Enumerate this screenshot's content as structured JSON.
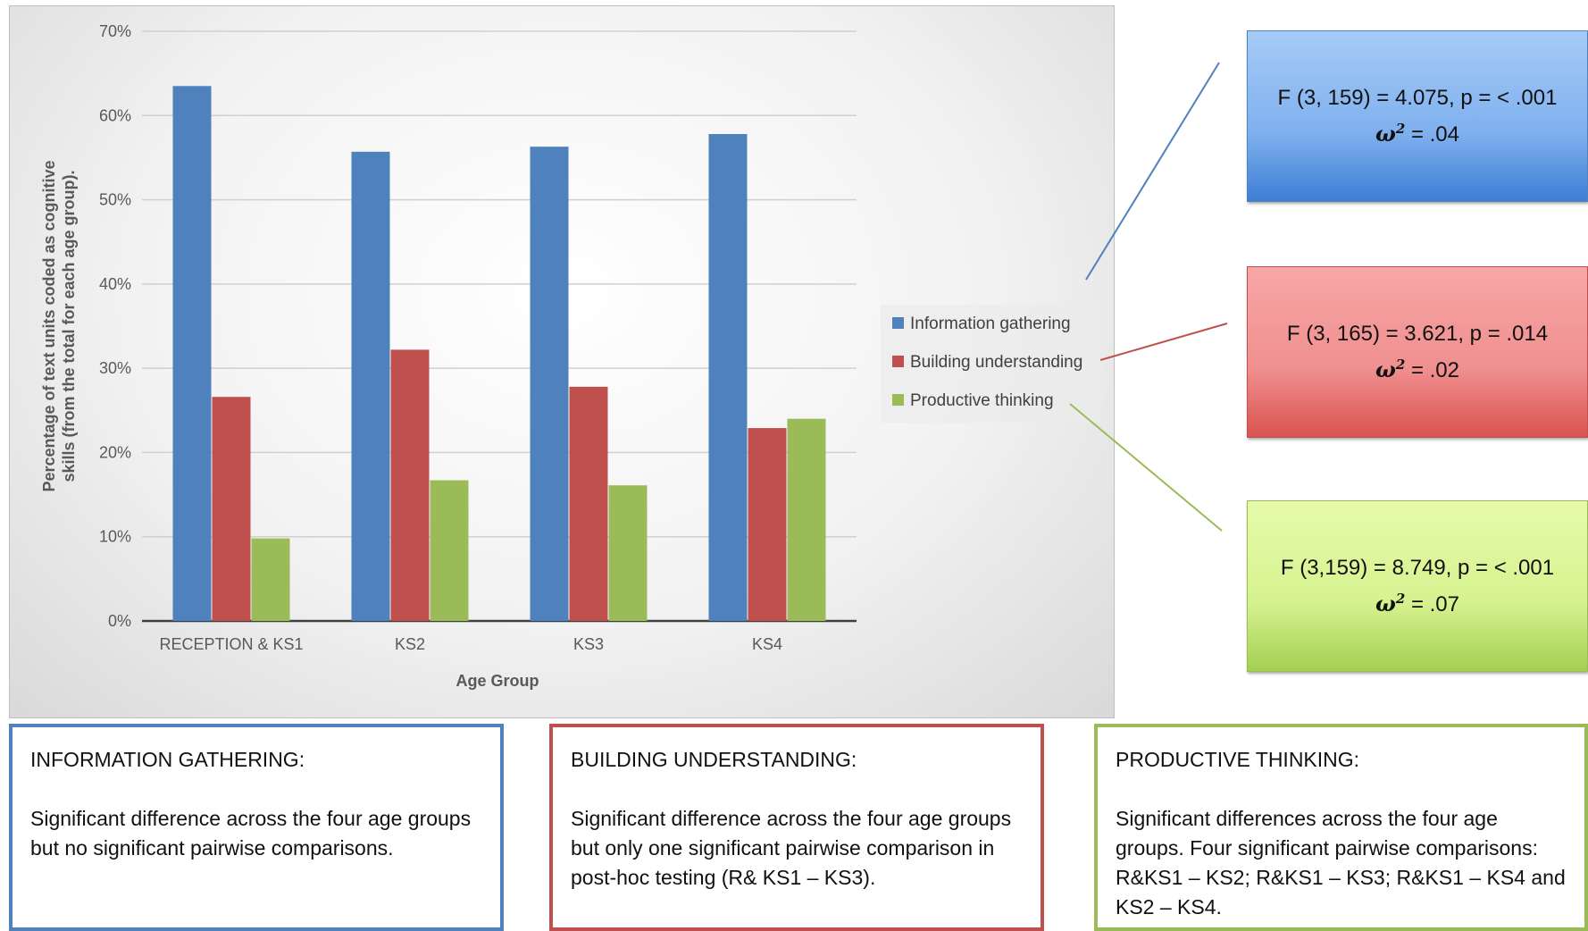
{
  "chart_data": {
    "type": "bar",
    "categories": [
      "RECEPTION & KS1",
      "KS2",
      "KS3",
      "KS4"
    ],
    "series": [
      {
        "name": "Information gathering",
        "values": [
          63.5,
          55.7,
          56.3,
          57.8
        ],
        "color": "#4f81bd"
      },
      {
        "name": "Building understanding",
        "values": [
          26.6,
          32.2,
          27.8,
          22.9
        ],
        "color": "#c0504d"
      },
      {
        "name": "Productive thinking",
        "values": [
          9.8,
          16.7,
          16.1,
          24.0
        ],
        "color": "#9bbb59"
      }
    ],
    "xlabel": "Age Group",
    "ylabel": "Percentage of text units coded as cognitive skills (from the total for each age group).",
    "ylim": [
      0,
      70
    ],
    "yticks": [
      "0%",
      "10%",
      "20%",
      "30%",
      "40%",
      "50%",
      "60%",
      "70%"
    ],
    "grid": true,
    "legend_position": "right"
  },
  "stats": [
    {
      "line1": "F (3, 159) = 4.075, p = < .001",
      "omega_symbol": "ω",
      "omega_power": "2",
      "omega_value": " = .04",
      "color": "#4f81bd"
    },
    {
      "line1": "F (3, 165) = 3.621, p = .014",
      "omega_symbol": "ω",
      "omega_power": "2",
      "omega_value": " = .02",
      "color": "#c0504d"
    },
    {
      "line1": "F (3,159) = 8.749, p = < .001",
      "omega_symbol": "ω",
      "omega_power": "2",
      "omega_value": " = .07",
      "color": "#9bbb59"
    }
  ],
  "notes": [
    {
      "title": "INFORMATION GATHERING:",
      "body": "Significant difference across the four age groups but no significant pairwise comparisons."
    },
    {
      "title": "BUILDING UNDERSTANDING:",
      "body": "Significant difference across the four age groups but only one significant pairwise comparison in post-hoc testing (R& KS1 – KS3)."
    },
    {
      "title": "PRODUCTIVE THINKING:",
      "body": "Significant differences across the four age groups. Four significant pairwise comparisons: R&KS1 – KS2; R&KS1 – KS3; R&KS1 – KS4 and KS2 – KS4."
    }
  ]
}
